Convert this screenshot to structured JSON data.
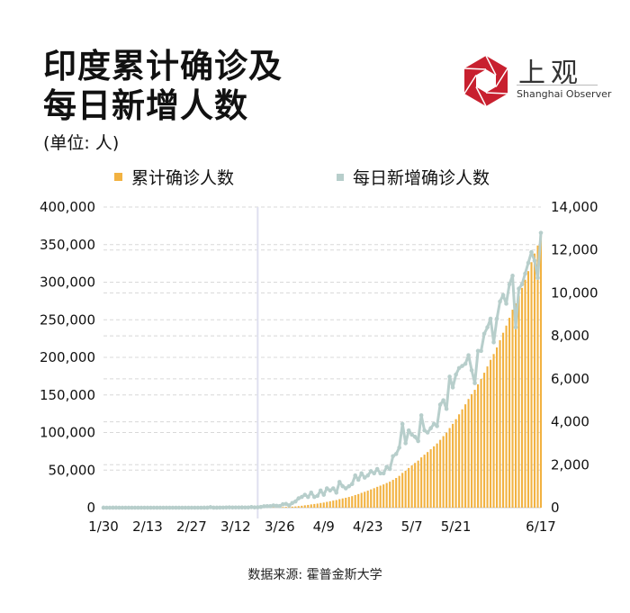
{
  "header": {
    "title_line1": "印度累计确诊及",
    "title_line2": "每日新增人数",
    "unit": "(单位: 人)"
  },
  "logo": {
    "name_cn": "上观",
    "name_en": "Shanghai Observer"
  },
  "source": "数据来源: 霍普金斯大学",
  "colors": {
    "bars": "#f2b241",
    "line": "#b7cecb",
    "grid": "#d8d8d8",
    "highlight": "#dfe0ef",
    "logo_red": "#c8202f"
  },
  "chart_data": {
    "type": "bar+line",
    "legend": [
      {
        "label": "累计确诊人数",
        "type": "bar"
      },
      {
        "label": "每日新增确诊人数",
        "type": "line"
      }
    ],
    "legend_placement": "top",
    "start_date": "1/30",
    "end_date": "6/17",
    "x_tick_labels": [
      {
        "label": "1/30",
        "day": 0
      },
      {
        "label": "2/13",
        "day": 14
      },
      {
        "label": "2/27",
        "day": 28
      },
      {
        "label": "3/12",
        "day": 42
      },
      {
        "label": "3/26",
        "day": 56
      },
      {
        "label": "4/9",
        "day": 70
      },
      {
        "label": "4/23",
        "day": 84
      },
      {
        "label": "5/7",
        "day": 98
      },
      {
        "label": "5/21",
        "day": 112
      },
      {
        "label": "6/17",
        "day": 139
      }
    ],
    "highlight_day": 49,
    "left_axis": {
      "ylim": [
        0,
        400000
      ],
      "ticks": [
        "0",
        "50,000",
        "100,000",
        "150,000",
        "200,000",
        "250,000",
        "300,000",
        "350,000",
        "400,000"
      ]
    },
    "right_axis": {
      "ylim": [
        0,
        14000
      ],
      "ticks": [
        "0",
        "2,000",
        "4,000",
        "6,000",
        "8,000",
        "10,000",
        "12,000",
        "14,000"
      ]
    },
    "daily_new": [
      1,
      0,
      0,
      1,
      1,
      0,
      0,
      0,
      0,
      0,
      0,
      0,
      0,
      0,
      0,
      0,
      0,
      0,
      0,
      0,
      0,
      0,
      0,
      0,
      0,
      0,
      0,
      0,
      0,
      0,
      0,
      0,
      2,
      1,
      22,
      2,
      1,
      3,
      5,
      9,
      15,
      8,
      10,
      10,
      12,
      11,
      10,
      28,
      14,
      21,
      32,
      65,
      69,
      71,
      103,
      89,
      79,
      159,
      174,
      110,
      218,
      288,
      437,
      500,
      601,
      500,
      700,
      500,
      550,
      800,
      600,
      900,
      800,
      900,
      700,
      1200,
      1000,
      900,
      1000,
      1100,
      1500,
      1300,
      1600,
      1400,
      1500,
      1700,
      1600,
      1800,
      1600,
      1600,
      1900,
      1800,
      2400,
      2500,
      2800,
      3900,
      3000,
      3600,
      3400,
      3300,
      3100,
      4300,
      3600,
      3500,
      3700,
      3900,
      3800,
      4800,
      5000,
      4600,
      6100,
      5600,
      6200,
      6500,
      6600,
      6700,
      7100,
      6400,
      5800,
      7300,
      7300,
      8100,
      8400,
      8800,
      7700,
      8800,
      9600,
      9900,
      9500,
      10400,
      10800,
      8400,
      10200,
      10400,
      10900,
      11400,
      11900,
      11500,
      10700,
      12800
    ],
    "cumulative": "running sum of daily_new"
  }
}
